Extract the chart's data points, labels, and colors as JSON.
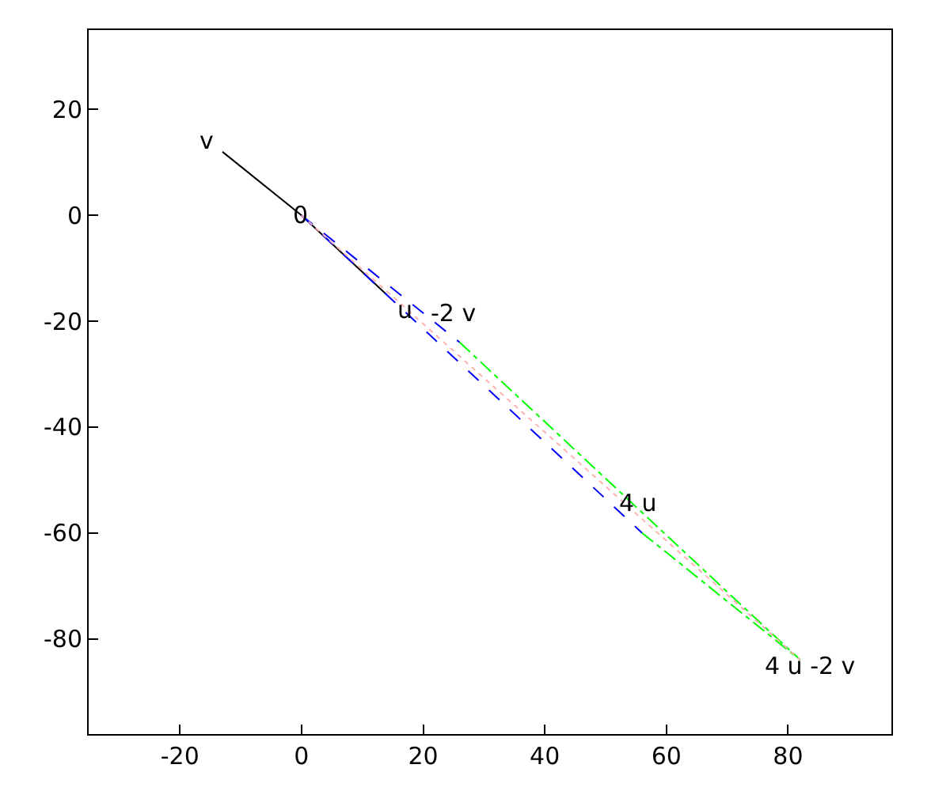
{
  "chart_data": {
    "type": "line",
    "xlim": [
      -35,
      97
    ],
    "ylim": [
      -98,
      35
    ],
    "xticks": [
      -20,
      0,
      20,
      40,
      60,
      80
    ],
    "yticks": [
      -80,
      -60,
      -40,
      -20,
      0,
      20
    ],
    "marker": "none",
    "series": [
      {
        "x": [
          -13,
          0,
          14
        ],
        "values": [
          12,
          0,
          -15
        ],
        "color": "#000000",
        "line_style": "solid"
      },
      {
        "x": [
          0,
          26
        ],
        "values": [
          0,
          -24
        ],
        "color": "#0000ff",
        "line_style": "dashed"
      },
      {
        "x": [
          0,
          56
        ],
        "values": [
          0,
          -60
        ],
        "color": "#0000ff",
        "line_style": "dashed"
      },
      {
        "x": [
          26,
          82
        ],
        "values": [
          -24,
          -84
        ],
        "color": "#00ff00",
        "line_style": "dashdot"
      },
      {
        "x": [
          56,
          82
        ],
        "values": [
          -60,
          -84
        ],
        "color": "#00ff00",
        "line_style": "dashdot"
      },
      {
        "x": [
          0,
          82
        ],
        "values": [
          0,
          -84
        ],
        "color": "#ffb0b0",
        "line_style": "dotted"
      }
    ],
    "annotations": [
      {
        "text": "v",
        "x": -13,
        "y": 12
      },
      {
        "text": "0",
        "x": 0,
        "y": 0
      },
      {
        "text": "u",
        "x": 14,
        "y": -15
      },
      {
        "text": "-2 v",
        "x": 26,
        "y": -24
      },
      {
        "text": "4 u",
        "x": 56,
        "y": -60
      },
      {
        "text": "4 u -2 v",
        "x": 82,
        "y": -84
      }
    ]
  }
}
